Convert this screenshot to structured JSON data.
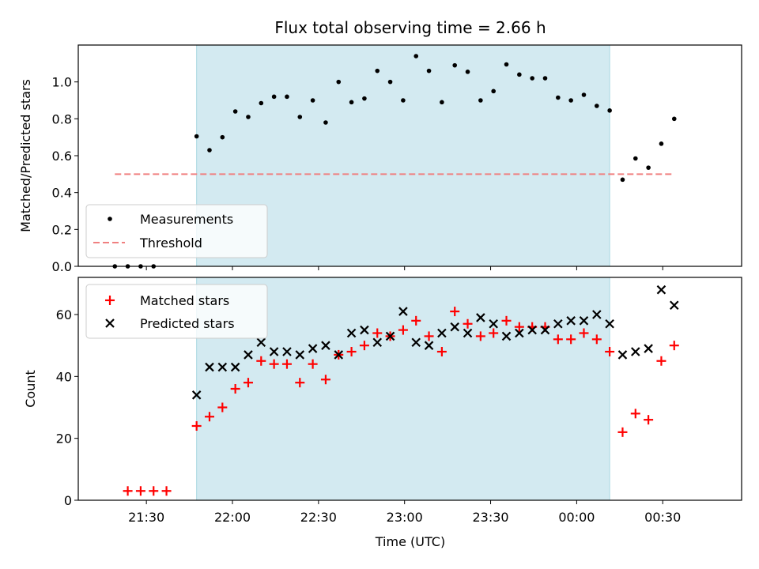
{
  "chart_data": [
    {
      "type": "scatter",
      "title": "Flux total observing time = 2.66 h",
      "xlabel": "",
      "ylabel": "Matched/Predicted stars",
      "ylim": [
        0,
        1.2
      ],
      "yticks": [
        "0.0",
        "0.2",
        "0.4",
        "0.6",
        "0.8",
        "1.0"
      ],
      "xlim": [
        -0.1583,
        1.3833
      ],
      "shaded_span": [
        0.1167,
        1.0767
      ],
      "series": [
        {
          "name": "Measurements",
          "color": "#000000",
          "marker": "dot",
          "x": [
            -0.0733,
            -0.0433,
            -0.0133,
            0.0167,
            0.1167,
            0.1467,
            0.1767,
            0.2067,
            0.2367,
            0.2667,
            0.2967,
            0.3267,
            0.3567,
            0.3867,
            0.4167,
            0.4467,
            0.4767,
            0.5067,
            0.5367,
            0.5667,
            0.5967,
            0.6267,
            0.6567,
            0.6867,
            0.7167,
            0.7467,
            0.7767,
            0.8067,
            0.8367,
            0.8667,
            0.8967,
            0.9267,
            0.9567,
            0.9867,
            1.0167,
            1.0467,
            1.0767,
            1.1067,
            1.1367,
            1.1667,
            1.1967,
            1.2267
          ],
          "values": [
            0.0,
            0.0,
            0.0,
            0.0,
            0.705,
            0.63,
            0.7,
            0.84,
            0.81,
            0.885,
            0.92,
            0.92,
            0.81,
            0.9,
            0.78,
            1.0,
            0.89,
            0.91,
            1.06,
            1.0,
            0.9,
            1.14,
            1.06,
            0.89,
            1.09,
            1.055,
            0.9,
            0.95,
            1.095,
            1.04,
            1.02,
            1.02,
            0.915,
            0.9,
            0.93,
            0.87,
            0.845,
            0.47,
            0.585,
            0.535,
            0.665,
            0.8
          ]
        },
        {
          "name": "Threshold",
          "color": "#f08080",
          "style": "dashed",
          "x": [
            -0.0733,
            1.2267
          ],
          "values": [
            0.5,
            0.5
          ]
        }
      ],
      "legend": "lower-left"
    },
    {
      "type": "scatter",
      "title": "",
      "xlabel": "Time (UTC)",
      "ylabel": "Count",
      "ylim": [
        0,
        72
      ],
      "yticks": [
        "0",
        "20",
        "40",
        "60"
      ],
      "xlim": [
        -0.1583,
        1.3833
      ],
      "xticks": [
        "21:30",
        "22:00",
        "22:30",
        "23:00",
        "23:30",
        "00:00",
        "00:30"
      ],
      "shaded_span": [
        0.1167,
        1.0767
      ],
      "series": [
        {
          "name": "Matched stars",
          "color": "#ff0000",
          "marker": "plus",
          "x": [
            -0.0433,
            -0.0133,
            0.0167,
            0.0467,
            0.1167,
            0.1467,
            0.1767,
            0.2067,
            0.2367,
            0.2667,
            0.2967,
            0.3267,
            0.3567,
            0.3867,
            0.4167,
            0.4467,
            0.4767,
            0.5067,
            0.5367,
            0.5667,
            0.5967,
            0.6267,
            0.6567,
            0.6867,
            0.7167,
            0.7467,
            0.7767,
            0.8067,
            0.8367,
            0.8667,
            0.8967,
            0.9267,
            0.9567,
            0.9867,
            1.0167,
            1.0467,
            1.0767,
            1.1067,
            1.1367,
            1.1667,
            1.1967,
            1.2267
          ],
          "values": [
            3,
            3,
            3,
            3,
            24,
            27,
            30,
            36,
            38,
            45,
            44,
            44,
            38,
            44,
            39,
            47,
            48,
            50,
            54,
            53,
            55,
            58,
            53,
            48,
            61,
            57,
            53,
            54,
            58,
            56,
            56,
            56,
            52,
            52,
            54,
            52,
            48,
            22,
            28,
            26,
            45,
            50
          ]
        },
        {
          "name": "Predicted stars",
          "color": "#000000",
          "marker": "x",
          "x": [
            0.1167,
            0.1467,
            0.1767,
            0.2067,
            0.2367,
            0.2667,
            0.2967,
            0.3267,
            0.3567,
            0.3867,
            0.4167,
            0.4467,
            0.4767,
            0.5067,
            0.5367,
            0.5667,
            0.5967,
            0.6267,
            0.6567,
            0.6867,
            0.7167,
            0.7467,
            0.7767,
            0.8067,
            0.8367,
            0.8667,
            0.8967,
            0.9267,
            0.9567,
            0.9867,
            1.0167,
            1.0467,
            1.0767,
            1.1067,
            1.1367,
            1.1667,
            1.1967,
            1.2267
          ],
          "values": [
            34,
            43,
            43,
            43,
            47,
            51,
            48,
            48,
            47,
            49,
            50,
            47,
            54,
            55,
            51,
            53,
            61,
            51,
            50,
            54,
            56,
            54,
            59,
            57,
            53,
            54,
            55,
            55,
            57,
            58,
            58,
            60,
            57,
            47,
            48,
            49,
            68,
            63
          ]
        }
      ],
      "legend": "upper-left"
    }
  ],
  "colors": {
    "shade": "#d3eaf1",
    "shade_edge": "#a8d7e2"
  }
}
